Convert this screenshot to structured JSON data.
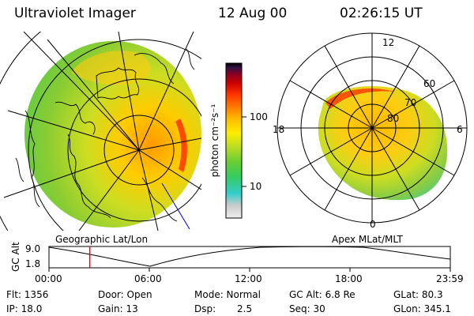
{
  "header": {
    "instrument": "Ultraviolet Imager",
    "date": "12 Aug 00",
    "time": "02:26:15 UT"
  },
  "colorbar": {
    "unit_label": "photon cm⁻²s⁻¹",
    "tick_upper": "100",
    "tick_lower": "10",
    "colors": [
      "#eeeeee",
      "#cccccc",
      "#33cccc",
      "#33cc66",
      "#66cc33",
      "#bbdd22",
      "#ffee00",
      "#ffbb00",
      "#ff7700",
      "#ff3300",
      "#cc0000",
      "#880022",
      "#331144",
      "#000000"
    ]
  },
  "left_map": {
    "caption": "Geographic Lat/Lon"
  },
  "right_map": {
    "caption": "Apex MLat/MLT",
    "mlt_labels": {
      "top": "12",
      "left": "18",
      "right": "6",
      "bottom": "0"
    },
    "mlat_labels": [
      "60",
      "70",
      "80"
    ]
  },
  "altitude_plot": {
    "ylabel": "GC Alt",
    "ytick_high": "9.0",
    "ytick_low": "1.8",
    "xticks": [
      "00:00",
      "06:00",
      "12:00",
      "18:00",
      "23:59"
    ],
    "current_time_marker_hours": 2.44
  },
  "info": {
    "flt": "Flt: 1356",
    "ip": "IP: 18.0",
    "door": "Door: Open",
    "gain": "Gain: 13",
    "mode": "Mode: Normal",
    "dsp_label": "Dsp:",
    "dsp_value": "2.5",
    "gcalt": "GC Alt: 6.8 Re",
    "seq": "Seq: 30",
    "glat": "GLat: 80.3",
    "glon": "GLon: 345.1"
  }
}
